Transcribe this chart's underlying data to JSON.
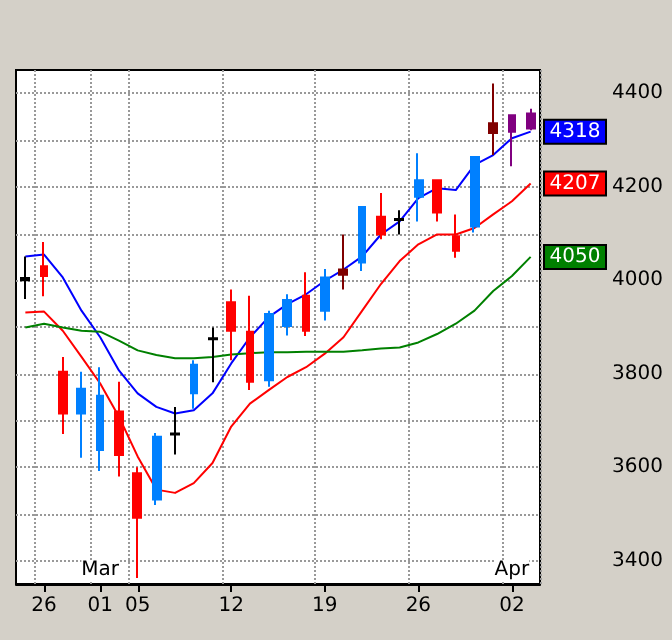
{
  "chart_data": {
    "type": "candlestick",
    "categories": [
      null,
      "26",
      null,
      null,
      "01",
      null,
      "05",
      null,
      null,
      null,
      null,
      "12",
      null,
      null,
      null,
      null,
      "19",
      null,
      null,
      null,
      null,
      "26",
      null,
      null,
      null,
      null,
      "02",
      null
    ],
    "ohlc": [
      [
        4000,
        4051,
        3960,
        4005
      ],
      [
        4030,
        4082,
        3966,
        4009
      ],
      [
        3804,
        3836,
        3671,
        3715
      ],
      [
        3715,
        3804,
        3620,
        3768
      ],
      [
        3637,
        3814,
        3592,
        3753
      ],
      [
        3719,
        3783,
        3580,
        3626
      ],
      [
        3587,
        3600,
        3363,
        3492
      ],
      [
        3531,
        3673,
        3519,
        3665
      ],
      [
        3670,
        3729,
        3627,
        3672
      ],
      [
        3758,
        3829,
        3725,
        3819
      ],
      [
        3874,
        3899,
        3782,
        3876
      ],
      [
        3953,
        3980,
        3829,
        3892
      ],
      [
        3890,
        3967,
        3765,
        3783
      ],
      [
        3786,
        3935,
        3772,
        3928
      ],
      [
        3902,
        3970,
        3882,
        3958
      ],
      [
        3967,
        4017,
        3881,
        3892
      ],
      [
        3935,
        4024,
        3914,
        4006
      ],
      [
        4023,
        4098,
        3980,
        4012
      ],
      [
        4038,
        4157,
        4020,
        4157
      ],
      [
        4136,
        4187,
        4088,
        4098
      ],
      [
        4129,
        4150,
        4098,
        4131
      ],
      [
        4179,
        4272,
        4126,
        4214
      ],
      [
        4214,
        4214,
        4126,
        4145
      ],
      [
        4094,
        4141,
        4048,
        4063
      ],
      [
        4115,
        4264,
        4102,
        4264
      ],
      [
        4336,
        4421,
        4268,
        4315
      ],
      [
        4353,
        4353,
        4244,
        4318
      ],
      [
        4357,
        4367,
        4321,
        4325
      ]
    ],
    "colors": [
      "#000000",
      "#ff0000",
      "#ff0000",
      "#0080ff",
      "#0080ff",
      "#ff0000",
      "#ff0000",
      "#0080ff",
      "#000000",
      "#0080ff",
      "#000000",
      "#ff0000",
      "#ff0000",
      "#0080ff",
      "#0080ff",
      "#ff0000",
      "#0080ff",
      "#800000",
      "#0080ff",
      "#ff0000",
      "#000000",
      "#0080ff",
      "#ff0000",
      "#ff0000",
      "#0080ff",
      "#800000",
      "#800080",
      "#800080"
    ],
    "series": [
      {
        "type": "line",
        "color": "#0000ff",
        "values": [
          4051,
          4055,
          4006,
          3935,
          3878,
          3807,
          3758,
          3729,
          3715,
          3722,
          3758,
          3822,
          3878,
          3921,
          3949,
          3970,
          3999,
          4023,
          4051,
          4098,
          4126,
          4176,
          4197,
          4193,
          4247,
          4268,
          4304,
          4318
        ],
        "value_labels": [
          null,
          null,
          null,
          null,
          null,
          null,
          null,
          null,
          null,
          null,
          null,
          null,
          null,
          null,
          null,
          null,
          null,
          null,
          null,
          null,
          null,
          null,
          null,
          null,
          null,
          null,
          null,
          "4318"
        ]
      },
      {
        "type": "line",
        "color": "#ff0000",
        "values": [
          3931,
          3933,
          3892,
          3836,
          3779,
          3708,
          3623,
          3552,
          3545,
          3566,
          3609,
          3687,
          3736,
          3765,
          3793,
          3814,
          3843,
          3878,
          3935,
          3992,
          4041,
          4077,
          4098,
          4098,
          4112,
          4141,
          4169,
          4207
        ],
        "value_labels": [
          null,
          null,
          null,
          null,
          null,
          null,
          null,
          null,
          null,
          null,
          null,
          null,
          null,
          null,
          null,
          null,
          null,
          null,
          null,
          null,
          null,
          null,
          null,
          null,
          null,
          null,
          null,
          "4207"
        ]
      },
      {
        "type": "line",
        "color": "#008000",
        "values": [
          3899,
          3907,
          3899,
          3892,
          3890,
          3871,
          3850,
          3840,
          3833,
          3833,
          3836,
          3841,
          3844,
          3846,
          3846,
          3847,
          3847,
          3847,
          3850,
          3854,
          3856,
          3867,
          3885,
          3907,
          3935,
          3977,
          4009,
          4050
        ],
        "value_labels": [
          null,
          null,
          null,
          null,
          null,
          null,
          null,
          null,
          null,
          null,
          null,
          null,
          null,
          null,
          null,
          null,
          null,
          null,
          null,
          null,
          null,
          null,
          null,
          null,
          null,
          null,
          null,
          "4050"
        ]
      }
    ],
    "ylim": [
      3350,
      4450
    ],
    "yticks": [
      3400,
      {
        "value": 3500,
        "label": null
      },
      3600,
      {
        "value": 3700,
        "label": null
      },
      3800,
      {
        "value": 3900,
        "label": null
      },
      4000,
      {
        "value": 4100,
        "label": null
      },
      4200,
      {
        "value": 4300,
        "label": null
      },
      4400
    ],
    "grid": true,
    "marker": "none",
    "annotations": [
      "Mar",
      "Apr"
    ]
  }
}
